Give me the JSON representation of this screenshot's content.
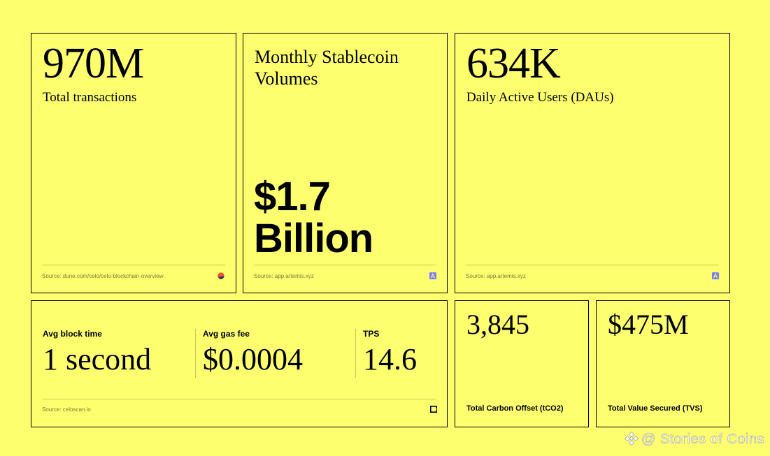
{
  "cards": {
    "transactions": {
      "value": "970M",
      "label": "Total transactions",
      "source": "Source: dune.com/celo/celo-blockchain-overview",
      "source_icon": "dune-logo-icon"
    },
    "stablecoin": {
      "title": "Monthly Stablecoin Volumes",
      "hero_line1": "$1.7",
      "hero_line2": "Billion",
      "source": "Source: app.artemis.xyz",
      "source_icon": "artemis-logo-icon"
    },
    "dau": {
      "value": "634K",
      "label": "Daily Active Users (DAUs)",
      "source": "Source: app.artemis.xyz",
      "source_icon": "artemis-logo-icon"
    },
    "network": {
      "metrics": [
        {
          "label": "Avg block time",
          "value": "1 second"
        },
        {
          "label": "Avg gas fee",
          "value": "$0.0004"
        },
        {
          "label": "TPS",
          "value": "14.6"
        }
      ],
      "source": "Source: celoscan.io",
      "source_icon": "celoscan-logo-icon"
    },
    "carbon": {
      "value": "3,845",
      "label": "Total Carbon Offset (tCO2)"
    },
    "tvs": {
      "value": "$475M",
      "label": "Total Value Secured (TVS)"
    }
  },
  "watermark": {
    "text": "@ Stories of Coins",
    "icon": "binance-square-icon"
  },
  "colors": {
    "background": "#fdff6f",
    "border": "#000000",
    "artemis_icon": "#7b7bff",
    "dune_icon_top": "#e8552a",
    "dune_icon_bottom": "#2b2b6b"
  }
}
